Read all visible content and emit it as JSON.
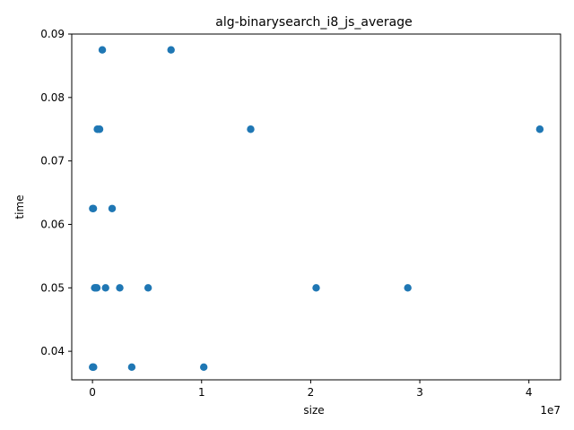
{
  "chart_data": {
    "type": "scatter",
    "title": "alg-binarysearch_i8_js_average",
    "xlabel": "size",
    "ylabel": "time",
    "x_offset_label": "1e7",
    "xlim": [
      -1900000,
      42900000
    ],
    "ylim": [
      0.0355,
      0.09
    ],
    "x_ticks": [
      {
        "value": 0,
        "label": "0"
      },
      {
        "value": 10000000,
        "label": "1"
      },
      {
        "value": 20000000,
        "label": "2"
      },
      {
        "value": 30000000,
        "label": "3"
      },
      {
        "value": 40000000,
        "label": "4"
      }
    ],
    "y_ticks": [
      {
        "value": 0.04,
        "label": "0.04"
      },
      {
        "value": 0.05,
        "label": "0.05"
      },
      {
        "value": 0.06,
        "label": "0.06"
      },
      {
        "value": 0.07,
        "label": "0.07"
      },
      {
        "value": 0.08,
        "label": "0.08"
      },
      {
        "value": 0.09,
        "label": "0.09"
      }
    ],
    "grid": false,
    "marker_color": "#1f77b4",
    "points": [
      {
        "x": 10000,
        "y": 0.0375
      },
      {
        "x": 50000,
        "y": 0.0375
      },
      {
        "x": 100000,
        "y": 0.0375
      },
      {
        "x": 3600000,
        "y": 0.0375
      },
      {
        "x": 10200000,
        "y": 0.0375
      },
      {
        "x": 20000,
        "y": 0.0625
      },
      {
        "x": 80000,
        "y": 0.0625
      },
      {
        "x": 1800000,
        "y": 0.0625
      },
      {
        "x": 200000,
        "y": 0.05
      },
      {
        "x": 300000,
        "y": 0.05
      },
      {
        "x": 400000,
        "y": 0.05
      },
      {
        "x": 1200000,
        "y": 0.05
      },
      {
        "x": 2500000,
        "y": 0.05
      },
      {
        "x": 5100000,
        "y": 0.05
      },
      {
        "x": 20500000,
        "y": 0.05
      },
      {
        "x": 28900000,
        "y": 0.05
      },
      {
        "x": 450000,
        "y": 0.075
      },
      {
        "x": 650000,
        "y": 0.075
      },
      {
        "x": 14500000,
        "y": 0.075
      },
      {
        "x": 41000000,
        "y": 0.075
      },
      {
        "x": 900000,
        "y": 0.0875
      },
      {
        "x": 7200000,
        "y": 0.0875
      }
    ]
  }
}
